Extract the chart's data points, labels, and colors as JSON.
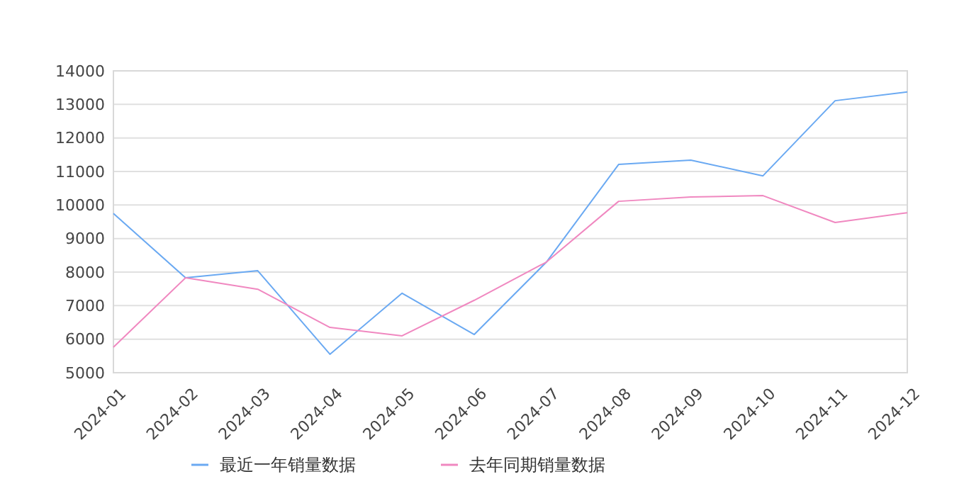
{
  "chart_data": {
    "type": "line",
    "categories": [
      "2024-01",
      "2024-02",
      "2024-03",
      "2024-04",
      "2024-05",
      "2024-06",
      "2024-07",
      "2024-08",
      "2024-09",
      "2024-10",
      "2024-11",
      "2024-12"
    ],
    "series": [
      {
        "name": "最近一年销量数据",
        "color": "#6aa9f2",
        "values": [
          9750,
          7830,
          8040,
          5550,
          7370,
          6140,
          8300,
          11210,
          11340,
          10870,
          13110,
          13370
        ]
      },
      {
        "name": "去年同期销量数据",
        "color": "#f088c0",
        "values": [
          5760,
          7830,
          7490,
          6350,
          6100,
          7160,
          8300,
          10110,
          10240,
          10280,
          9480,
          9770
        ]
      }
    ],
    "ylim": [
      5000,
      14000
    ],
    "yticks": [
      5000,
      6000,
      7000,
      8000,
      9000,
      10000,
      11000,
      12000,
      13000,
      14000
    ],
    "grid": "y",
    "legend": "bottom",
    "marker": "none",
    "line_style": "solid"
  }
}
